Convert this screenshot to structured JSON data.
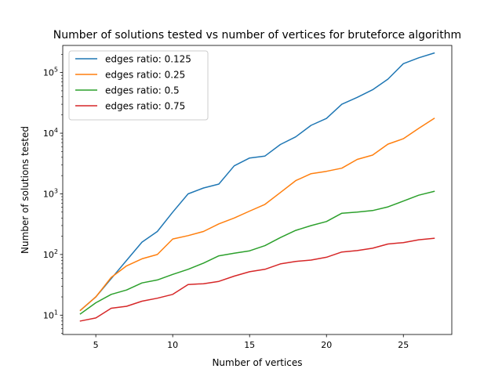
{
  "chart_data": {
    "type": "line",
    "title": "Number of solutions tested vs number of vertices for bruteforce algorithm",
    "xlabel": "Number of vertices",
    "ylabel": "Number of solutions tested",
    "yscale": "log",
    "xlim": [
      2.85,
      28.15
    ],
    "ylim": [
      4.8,
      280000
    ],
    "xticks": [
      5,
      10,
      15,
      20,
      25
    ],
    "yticks": [
      {
        "value": 10,
        "base": "10",
        "exp": "1"
      },
      {
        "value": 100,
        "base": "10",
        "exp": "2"
      },
      {
        "value": 1000,
        "base": "10",
        "exp": "3"
      },
      {
        "value": 10000,
        "base": "10",
        "exp": "4"
      },
      {
        "value": 100000,
        "base": "10",
        "exp": "5"
      }
    ],
    "grid": false,
    "legend_position": "top-left",
    "x": [
      4,
      5,
      6,
      7,
      8,
      9,
      10,
      11,
      12,
      13,
      14,
      15,
      16,
      17,
      18,
      19,
      20,
      21,
      22,
      23,
      24,
      25,
      26,
      27
    ],
    "series": [
      {
        "name": "edges ratio: 0.125",
        "color": "#1f77b4",
        "values": [
          12,
          20,
          40,
          80,
          160,
          240,
          500,
          1000,
          1250,
          1450,
          2900,
          3900,
          4200,
          6500,
          8700,
          13500,
          17500,
          30000,
          39000,
          52000,
          78000,
          140000,
          175000,
          210000
        ]
      },
      {
        "name": "edges ratio: 0.25",
        "color": "#ff7f0e",
        "values": [
          12,
          20,
          42,
          65,
          85,
          100,
          180,
          205,
          240,
          320,
          400,
          520,
          670,
          1050,
          1650,
          2150,
          2350,
          2650,
          3700,
          4350,
          6600,
          8100,
          12000,
          17500
        ]
      },
      {
        "name": "edges ratio: 0.5",
        "color": "#2ca02c",
        "values": [
          10.5,
          16,
          22,
          26,
          34,
          38,
          47,
          57,
          72,
          95,
          105,
          115,
          140,
          190,
          250,
          300,
          350,
          480,
          500,
          530,
          610,
          760,
          950,
          1100
        ]
      },
      {
        "name": "edges ratio: 0.75",
        "color": "#d62728",
        "values": [
          8,
          9,
          13,
          14,
          17,
          19,
          22,
          32,
          33,
          36,
          44,
          52,
          57,
          70,
          77,
          81,
          90,
          110,
          116,
          127,
          149,
          157,
          175,
          185
        ]
      }
    ]
  }
}
